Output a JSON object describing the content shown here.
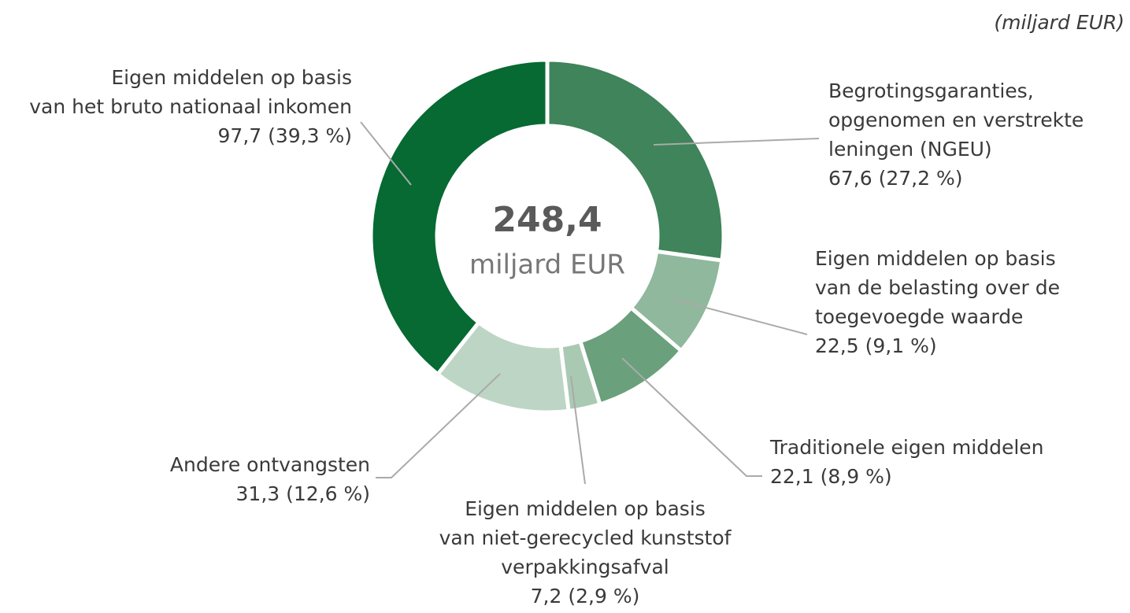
{
  "chart_data": {
    "type": "donut",
    "unit_note": "(miljard EUR)",
    "center_label": [
      "248,4",
      "miljard EUR"
    ],
    "categories": [
      [
        "Begrotingsgaranties,",
        "opgenomen en verstrekte",
        "leningen (NGEU)"
      ],
      [
        "Eigen middelen op basis",
        "van de belasting over de",
        "toegevoegde waarde"
      ],
      [
        "Traditionele eigen middelen"
      ],
      [
        "Eigen middelen op basis",
        "van niet-gerecycled kunststof",
        "verpakkingsafval"
      ],
      [
        "Andere ontvangsten"
      ],
      [
        "Eigen middelen op basis",
        "van het bruto nationaal inkomen"
      ]
    ],
    "values": [
      67.6,
      22.5,
      22.1,
      7.2,
      31.3,
      97.7
    ],
    "value_labels": [
      "67,6 (27,2 %)",
      "22,5 (9,1 %)",
      "22,1 (8,9 %)",
      "7,2 (2,9 %)",
      "31,3 (12,6 %)",
      "97,7 (39,3 %)"
    ],
    "colors": [
      "#3f845a",
      "#8fb89c",
      "#6aa07c",
      "#a9c9b3",
      "#bdd5c5",
      "#066a32"
    ]
  }
}
